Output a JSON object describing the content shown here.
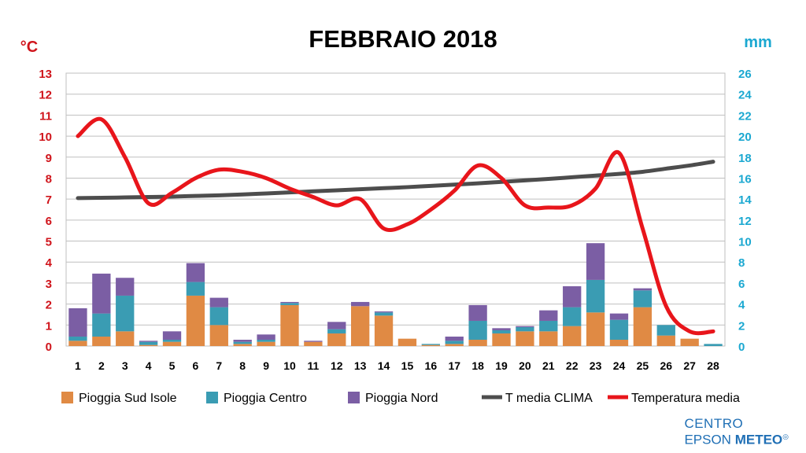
{
  "chart_data": {
    "type": "bar",
    "title": "FEBBRAIO 2018",
    "y_left_label": "°C",
    "y_right_label": "mm",
    "y_left_range": [
      0,
      13
    ],
    "y_left_ticks": [
      "0",
      "1",
      "2",
      "3",
      "4",
      "5",
      "6",
      "7",
      "8",
      "9",
      "10",
      "11",
      "12",
      "13"
    ],
    "y_right_range": [
      0,
      26
    ],
    "y_right_ticks": [
      "0",
      "2",
      "4",
      "6",
      "8",
      "10",
      "12",
      "14",
      "16",
      "18",
      "20",
      "22",
      "24",
      "26"
    ],
    "categories": [
      "1",
      "2",
      "3",
      "4",
      "5",
      "6",
      "7",
      "8",
      "9",
      "10",
      "11",
      "12",
      "13",
      "14",
      "15",
      "16",
      "17",
      "18",
      "19",
      "20",
      "21",
      "22",
      "23",
      "24",
      "25",
      "26",
      "27",
      "28"
    ],
    "grid": true,
    "legend_position": "bottom",
    "bar_series": [
      {
        "name": "Pioggia Sud Isole",
        "color": "#e08a44",
        "axis": "right",
        "values": [
          0.5,
          0.9,
          1.4,
          0.1,
          0.4,
          4.8,
          2.0,
          0.2,
          0.4,
          3.9,
          0.4,
          1.2,
          3.8,
          2.9,
          0.7,
          0.1,
          0.2,
          0.6,
          1.2,
          1.4,
          1.4,
          1.9,
          3.2,
          0.6,
          3.7,
          1.0,
          0.7,
          0.0
        ]
      },
      {
        "name": "Pioggia Centro",
        "color": "#3a9cb3",
        "axis": "right",
        "values": [
          0.4,
          2.2,
          3.4,
          0.3,
          0.2,
          1.3,
          1.7,
          0.2,
          0.2,
          0.2,
          0.0,
          0.4,
          0.0,
          0.3,
          0.0,
          0.1,
          0.3,
          1.8,
          0.3,
          0.4,
          1.0,
          1.8,
          3.1,
          1.9,
          1.6,
          1.0,
          0.0,
          0.2
        ]
      },
      {
        "name": "Pioggia Nord",
        "color": "#7b5ea4",
        "axis": "right",
        "values": [
          2.7,
          3.8,
          1.7,
          0.1,
          0.8,
          1.8,
          0.9,
          0.2,
          0.5,
          0.1,
          0.1,
          0.7,
          0.4,
          0.1,
          0.0,
          0.0,
          0.4,
          1.5,
          0.2,
          0.1,
          1.0,
          2.0,
          3.5,
          0.6,
          0.2,
          0.0,
          0.0,
          0.0
        ]
      }
    ],
    "line_series": [
      {
        "name": "T media CLIMA",
        "color": "#4d4d4d",
        "axis": "left",
        "values": [
          7.05,
          7.06,
          7.08,
          7.1,
          7.12,
          7.15,
          7.18,
          7.22,
          7.27,
          7.32,
          7.37,
          7.42,
          7.47,
          7.52,
          7.57,
          7.63,
          7.69,
          7.75,
          7.82,
          7.89,
          7.96,
          8.04,
          8.12,
          8.2,
          8.3,
          8.45,
          8.6,
          8.78
        ]
      },
      {
        "name": "Temperatura media",
        "color": "#e8151b",
        "axis": "left",
        "values": [
          10.0,
          10.8,
          9.0,
          6.8,
          7.3,
          8.0,
          8.4,
          8.3,
          8.0,
          7.5,
          7.1,
          6.7,
          7.0,
          5.6,
          5.8,
          6.5,
          7.4,
          8.6,
          8.0,
          6.7,
          6.6,
          6.7,
          7.5,
          9.2,
          5.6,
          1.9,
          0.7,
          0.7
        ]
      }
    ]
  },
  "branding": {
    "line1": "CENTRO",
    "line2a": "EPSON ",
    "line2b": "METEO"
  }
}
